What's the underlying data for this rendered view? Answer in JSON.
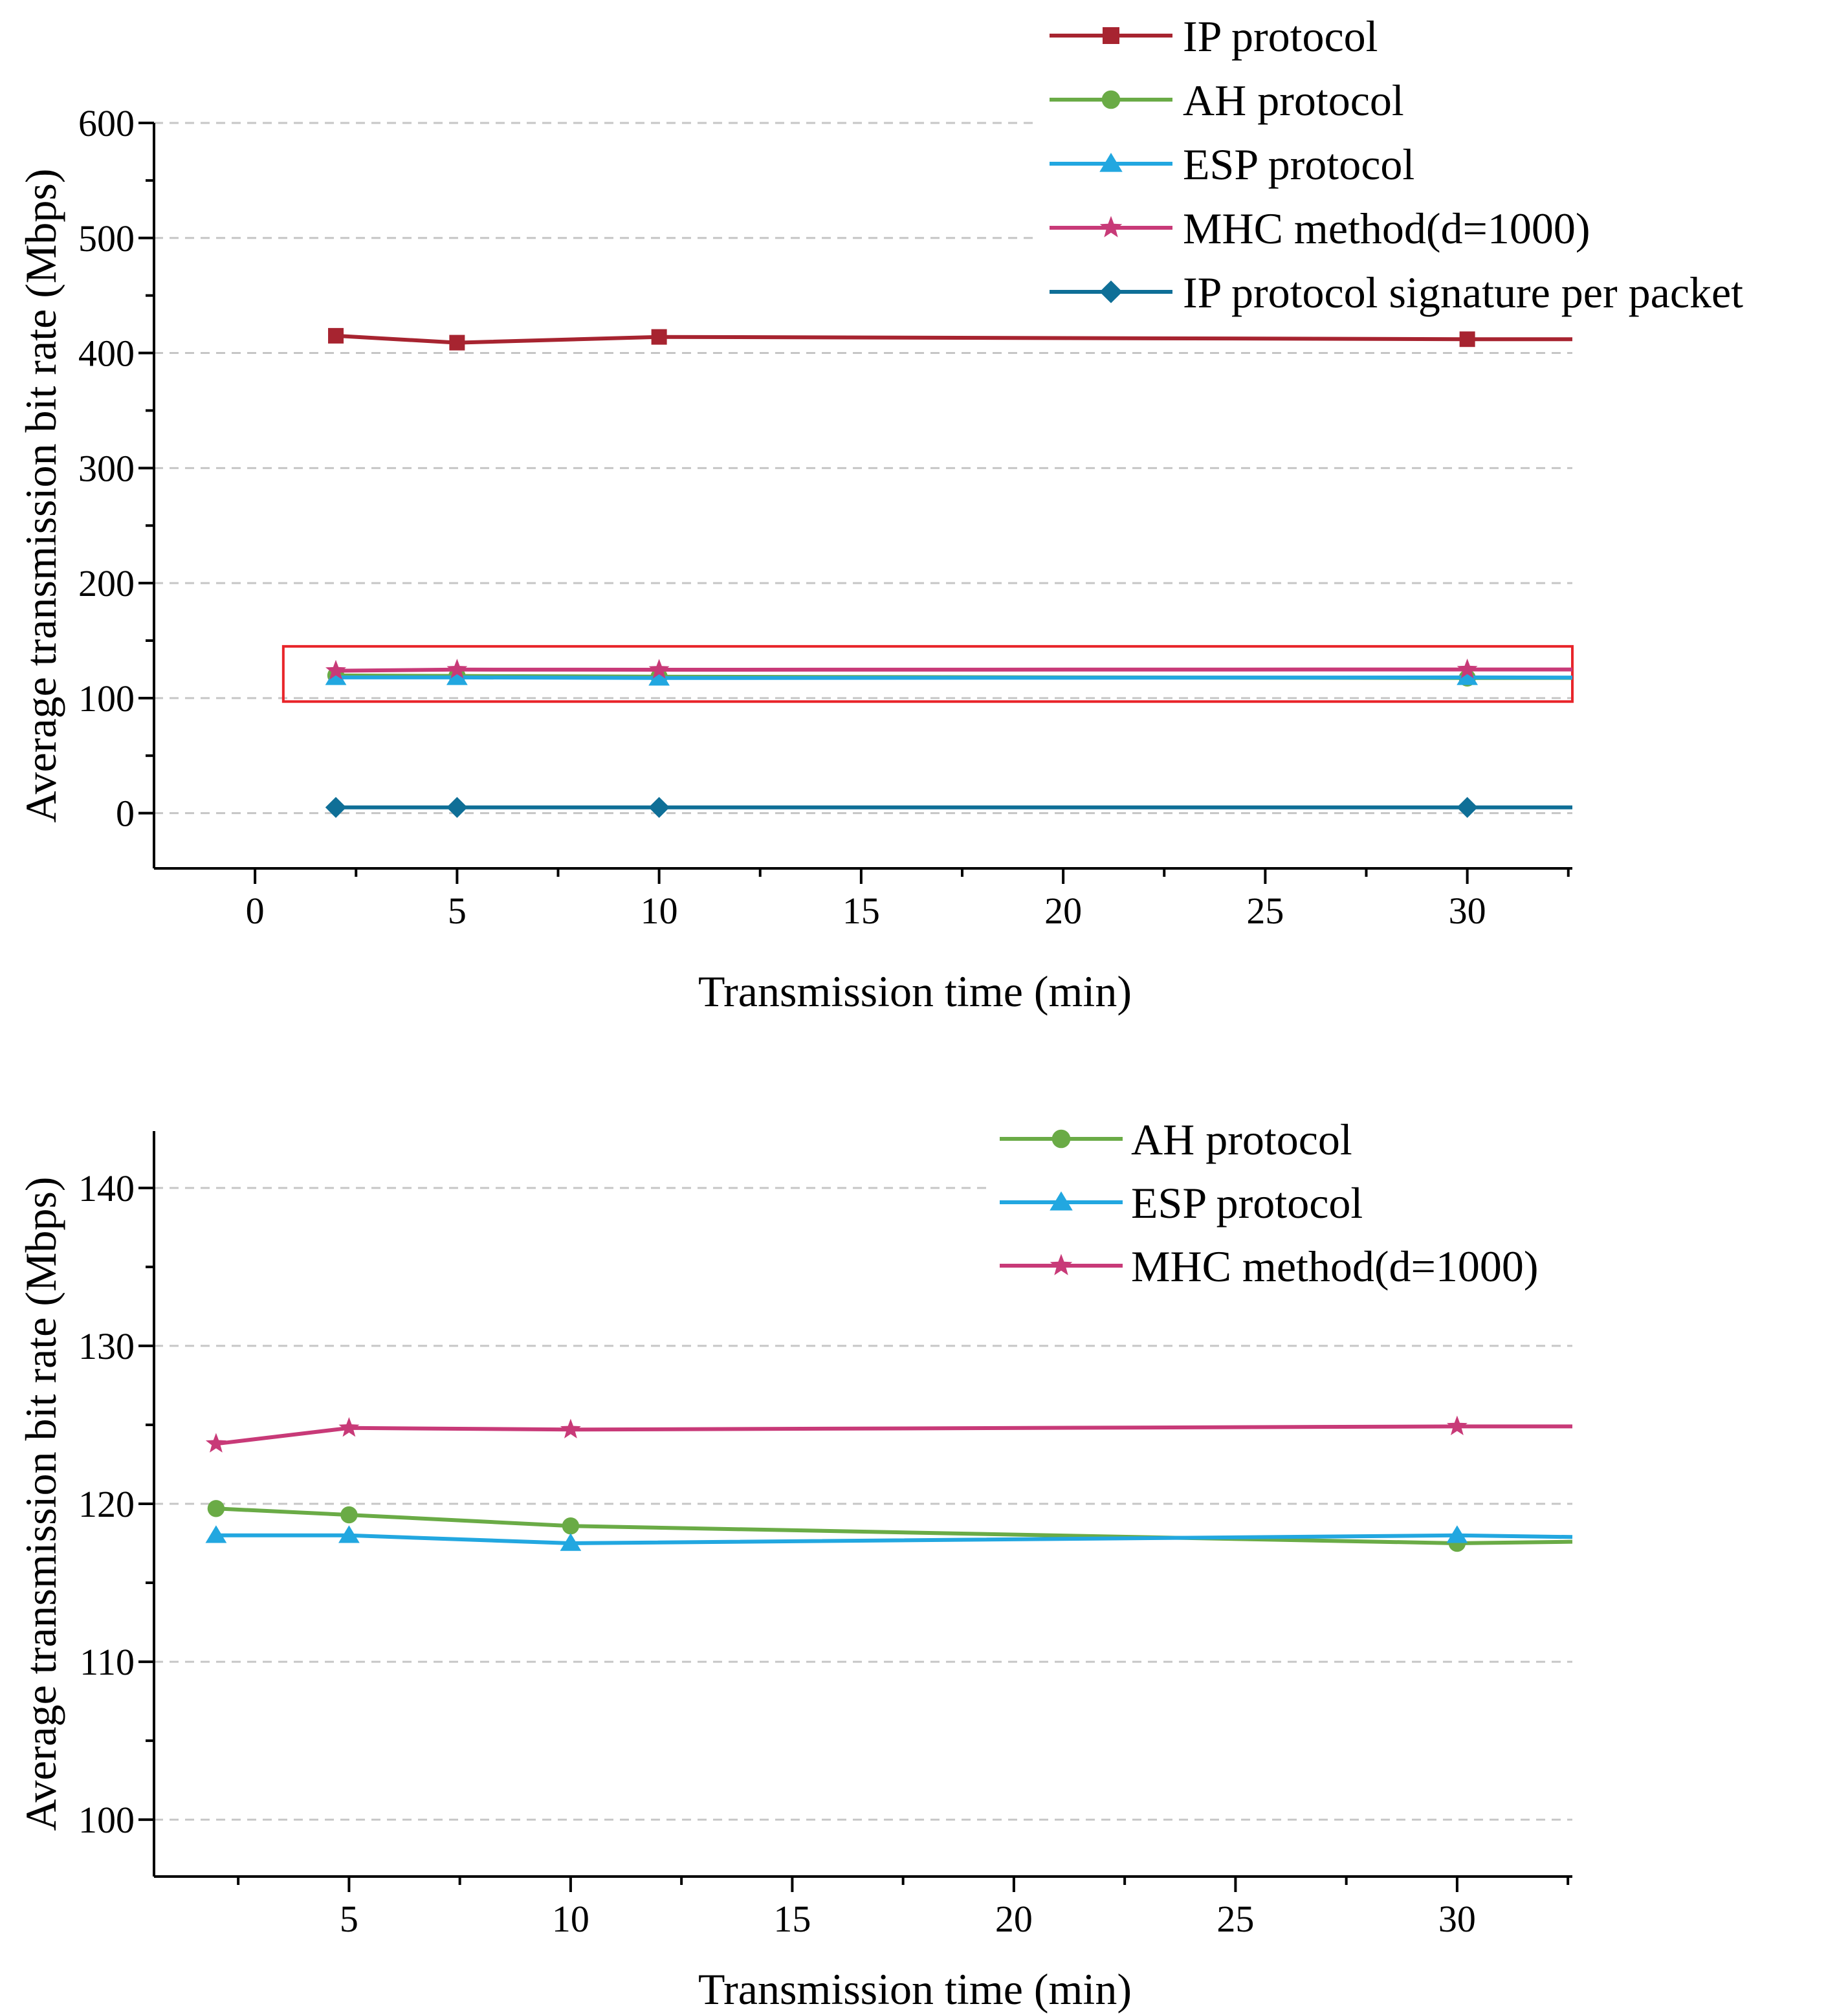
{
  "chart_data": [
    {
      "type": "line",
      "title": "",
      "xlabel": "Transmission time (min)",
      "ylabel": "Average transmission bit rate (Mbps)",
      "xlim": [
        -2.5,
        32.6
      ],
      "ylim": [
        -48,
        600
      ],
      "xticks": [
        0,
        5,
        10,
        15,
        20,
        25,
        30
      ],
      "xtick_labels": [
        "0",
        "5",
        "10",
        "15",
        "20",
        "25",
        "30"
      ],
      "yticks": [
        0,
        100,
        200,
        300,
        400,
        500,
        600
      ],
      "ytick_labels": [
        "0",
        "100",
        "200",
        "300",
        "400",
        "500",
        "600"
      ],
      "grid": "horizontal dashed",
      "legend_position": "top-right",
      "highlight_box": {
        "x0": 0.7,
        "x1": 32.6,
        "y0": 97,
        "y1": 145,
        "color": "#e8252a"
      },
      "series": [
        {
          "name": "IP protocol",
          "color": "#a72430",
          "marker": "square",
          "x": [
            2,
            5,
            10,
            30,
            32.6
          ],
          "y": [
            415,
            409,
            414,
            412,
            412
          ],
          "marked": [
            true,
            true,
            true,
            true,
            false
          ]
        },
        {
          "name": "AH protocol",
          "color": "#6aab46",
          "marker": "circle",
          "x": [
            2,
            5,
            10,
            30,
            32.6
          ],
          "y": [
            119.7,
            119.3,
            118.6,
            117.5,
            117.6
          ],
          "marked": [
            true,
            true,
            true,
            true,
            false
          ]
        },
        {
          "name": "ESP protocol",
          "color": "#22a7e0",
          "marker": "triangle",
          "x": [
            2,
            5,
            10,
            30,
            32.6
          ],
          "y": [
            118,
            118,
            117.5,
            118,
            117.9
          ],
          "marked": [
            true,
            true,
            true,
            true,
            false
          ]
        },
        {
          "name": "MHC method(d=1000)",
          "color": "#c83a78",
          "marker": "star",
          "x": [
            2,
            5,
            10,
            30,
            32.6
          ],
          "y": [
            123.8,
            124.8,
            124.7,
            124.9,
            124.9
          ],
          "marked": [
            true,
            true,
            true,
            true,
            false
          ]
        },
        {
          "name": "IP protocol signature per packet",
          "color": "#0f6f97",
          "marker": "diamond",
          "x": [
            2,
            5,
            10,
            30,
            32.6
          ],
          "y": [
            5,
            5,
            5,
            5,
            5
          ],
          "marked": [
            true,
            true,
            true,
            true,
            false
          ]
        }
      ]
    },
    {
      "type": "line",
      "title": "",
      "xlabel": "Transmission time (min)",
      "ylabel": "Average transmission bit rate (Mbps)",
      "xlim": [
        0.6,
        32.6
      ],
      "ylim": [
        96.4,
        143.6
      ],
      "xticks": [
        5,
        10,
        15,
        20,
        25,
        30
      ],
      "xtick_labels": [
        "5",
        "10",
        "15",
        "20",
        "25",
        "30"
      ],
      "yticks": [
        100,
        110,
        120,
        130,
        140
      ],
      "ytick_labels": [
        "100",
        "110",
        "120",
        "130",
        "140"
      ],
      "grid": "horizontal dashed",
      "legend_position": "top-right",
      "series": [
        {
          "name": "AH protocol",
          "color": "#6aab46",
          "marker": "circle",
          "x": [
            2,
            5,
            10,
            30,
            32.6
          ],
          "y": [
            119.7,
            119.3,
            118.6,
            117.5,
            117.6
          ],
          "marked": [
            true,
            true,
            true,
            true,
            false
          ]
        },
        {
          "name": "ESP protocol",
          "color": "#22a7e0",
          "marker": "triangle",
          "x": [
            2,
            5,
            10,
            30,
            32.6
          ],
          "y": [
            118,
            118,
            117.5,
            118,
            117.9
          ],
          "marked": [
            true,
            true,
            true,
            true,
            false
          ]
        },
        {
          "name": "MHC method(d=1000)",
          "color": "#c83a78",
          "marker": "star",
          "x": [
            2,
            5,
            10,
            30,
            32.6
          ],
          "y": [
            123.8,
            124.8,
            124.7,
            124.9,
            124.9
          ],
          "marked": [
            true,
            true,
            true,
            true,
            false
          ]
        }
      ]
    }
  ]
}
